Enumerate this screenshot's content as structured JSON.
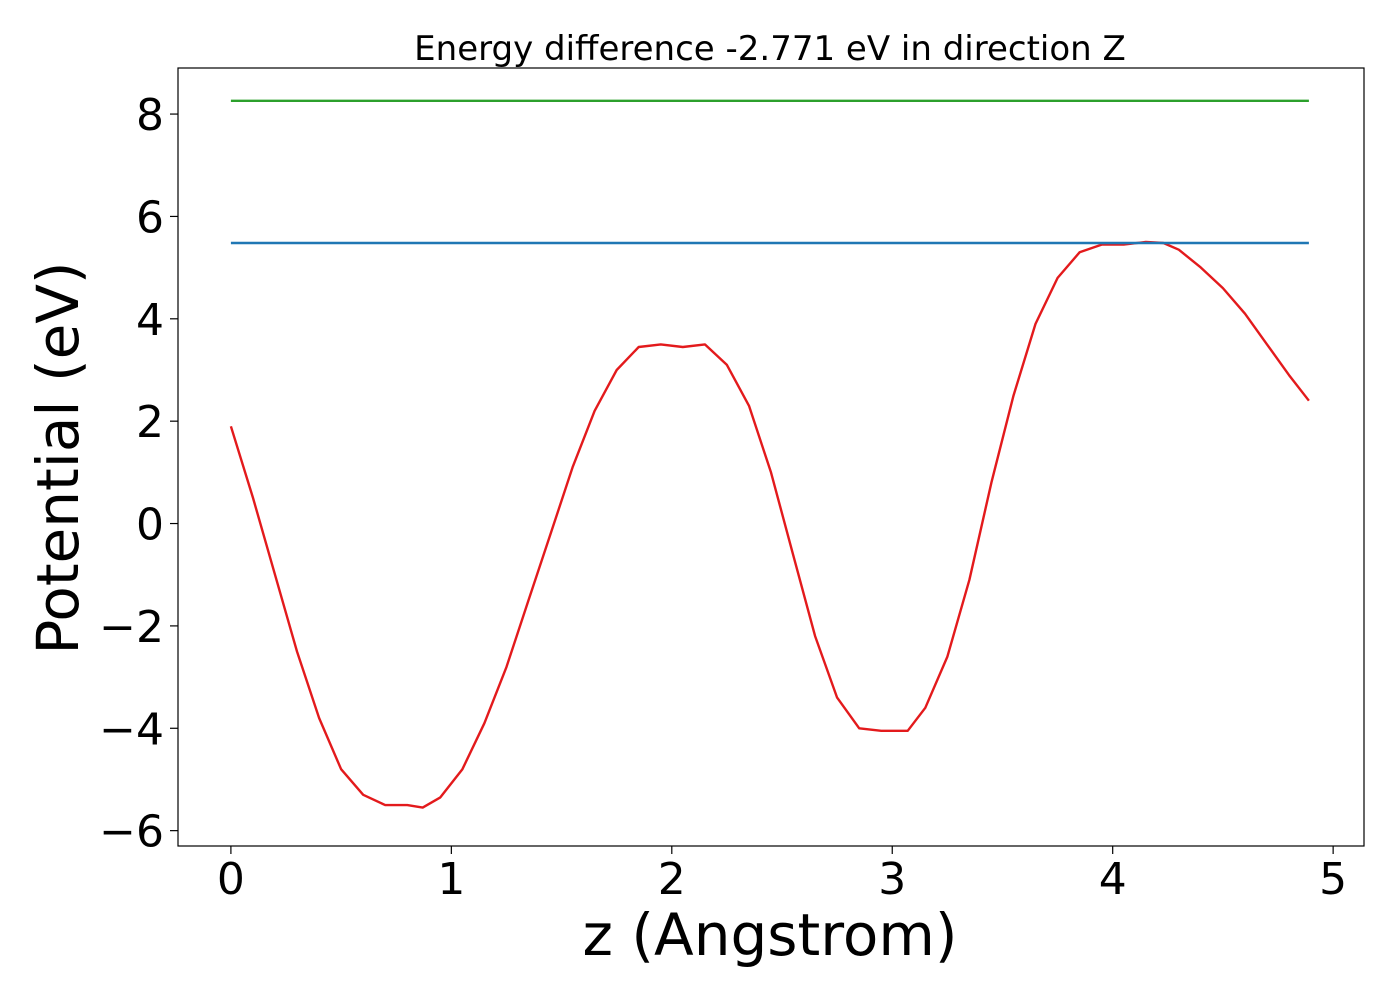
{
  "chart_data": {
    "type": "line",
    "title": "Energy difference -2.771 eV in direction Z",
    "xlabel": "z (Angstrom)",
    "ylabel": "Potential (eV)",
    "xlim": [
      -0.24,
      5.14
    ],
    "ylim": [
      -6.3,
      8.9
    ],
    "xticks": [
      0,
      1,
      2,
      3,
      4,
      5
    ],
    "yticks": [
      -6,
      -4,
      -2,
      0,
      2,
      4,
      6,
      8
    ],
    "ytick_labels": [
      "−6",
      "−4",
      "−2",
      "0",
      "2",
      "4",
      "6",
      "8"
    ],
    "grid": false,
    "series": [
      {
        "color": "#e31a1c",
        "x": [
          0.0,
          0.1,
          0.2,
          0.3,
          0.4,
          0.5,
          0.6,
          0.7,
          0.8,
          0.87,
          0.95,
          1.05,
          1.15,
          1.25,
          1.35,
          1.45,
          1.55,
          1.65,
          1.75,
          1.85,
          1.95,
          2.05,
          2.15,
          2.25,
          2.35,
          2.45,
          2.55,
          2.65,
          2.75,
          2.85,
          2.95,
          3.07,
          3.15,
          3.25,
          3.35,
          3.45,
          3.55,
          3.65,
          3.75,
          3.85,
          3.95,
          4.05,
          4.15,
          4.23,
          4.3,
          4.4,
          4.5,
          4.6,
          4.7,
          4.8,
          4.89
        ],
        "y": [
          1.9,
          0.5,
          -1.0,
          -2.5,
          -3.8,
          -4.8,
          -5.3,
          -5.5,
          -5.5,
          -5.55,
          -5.35,
          -4.8,
          -3.9,
          -2.8,
          -1.5,
          -0.2,
          1.1,
          2.2,
          3.0,
          3.45,
          3.5,
          3.45,
          3.5,
          3.1,
          2.3,
          1.0,
          -0.6,
          -2.2,
          -3.4,
          -4.0,
          -4.05,
          -4.05,
          -3.6,
          -2.6,
          -1.1,
          0.8,
          2.5,
          3.9,
          4.8,
          5.3,
          5.45,
          5.45,
          5.5,
          5.48,
          5.35,
          5.0,
          4.6,
          4.1,
          3.5,
          2.9,
          2.4
        ]
      },
      {
        "color": "#1f77b4",
        "x": [
          0.0,
          4.89
        ],
        "y": [
          5.48,
          5.48
        ]
      },
      {
        "color": "#2ca02c",
        "x": [
          0.0,
          4.89
        ],
        "y": [
          8.26,
          8.26
        ]
      }
    ]
  }
}
